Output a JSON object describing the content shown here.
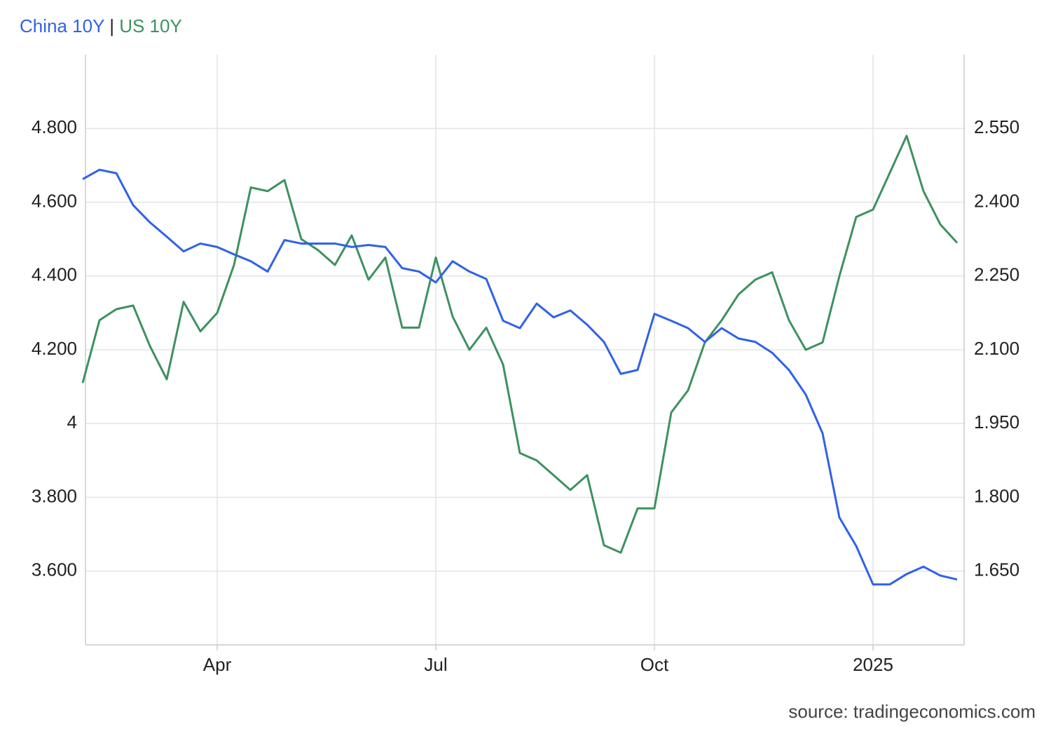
{
  "chart_data": {
    "type": "line",
    "legend_separator": "|",
    "source": "source: tradingeconomics.com",
    "categories": [
      null,
      null,
      null,
      null,
      null,
      null,
      null,
      null,
      "Apr",
      null,
      null,
      null,
      null,
      null,
      null,
      null,
      null,
      null,
      null,
      null,
      null,
      "Jul",
      null,
      null,
      null,
      null,
      null,
      null,
      null,
      null,
      null,
      null,
      null,
      null,
      "Oct",
      null,
      null,
      null,
      null,
      null,
      null,
      null,
      null,
      null,
      null,
      null,
      null,
      "2025",
      null,
      null,
      null,
      null,
      null
    ],
    "series": [
      {
        "name": "China 10Y",
        "color": "#2f62e8",
        "axis": "y2",
        "values": [
          2.447,
          2.466,
          2.459,
          2.394,
          2.359,
          2.33,
          2.3,
          2.316,
          2.309,
          2.294,
          2.28,
          2.259,
          2.323,
          2.316,
          2.316,
          2.316,
          2.309,
          2.313,
          2.309,
          2.266,
          2.259,
          2.237,
          2.28,
          2.259,
          2.244,
          2.159,
          2.144,
          2.194,
          2.166,
          2.18,
          2.151,
          2.116,
          2.051,
          2.059,
          2.173,
          2.159,
          2.144,
          2.116,
          2.144,
          2.123,
          2.116,
          2.094,
          2.059,
          2.009,
          1.93,
          1.759,
          1.701,
          1.623,
          1.623,
          1.644,
          1.659,
          1.641,
          1.633
        ]
      },
      {
        "name": "US 10Y",
        "color": "#3d9160",
        "axis": "y",
        "values": [
          4.11,
          4.28,
          4.31,
          4.32,
          4.21,
          4.12,
          4.33,
          4.25,
          4.3,
          4.43,
          4.64,
          4.63,
          4.66,
          4.5,
          4.47,
          4.43,
          4.51,
          4.39,
          4.45,
          4.26,
          4.26,
          4.45,
          4.29,
          4.2,
          4.26,
          4.16,
          3.92,
          3.9,
          3.86,
          3.82,
          3.86,
          3.67,
          3.65,
          3.77,
          3.77,
          4.03,
          4.09,
          4.22,
          4.28,
          4.35,
          4.39,
          4.41,
          4.28,
          4.2,
          4.22,
          4.4,
          4.56,
          4.58,
          4.68,
          4.78,
          4.63,
          4.54,
          4.49
        ]
      }
    ],
    "ylim": [
      3.4,
      5.0
    ],
    "yticks": [
      {
        "value": 3.6,
        "label": "3.600"
      },
      {
        "value": 3.8,
        "label": "3.800"
      },
      4,
      {
        "value": 4.2,
        "label": "4.200"
      },
      {
        "value": 4.4,
        "label": "4.400"
      },
      {
        "value": 4.6,
        "label": "4.600"
      },
      {
        "value": 4.8,
        "label": "4.800"
      }
    ],
    "y2lim": [
      1.5,
      2.7
    ],
    "y2ticks": [
      {
        "value": 1.65,
        "label": "1.650"
      },
      {
        "value": 1.8,
        "label": "1.800"
      },
      {
        "value": 1.95,
        "label": "1.950"
      },
      {
        "value": 2.1,
        "label": "2.100"
      },
      {
        "value": 2.25,
        "label": "2.250"
      },
      {
        "value": 2.4,
        "label": "2.400"
      },
      {
        "value": 2.55,
        "label": "2.550"
      }
    ],
    "grid": true
  }
}
